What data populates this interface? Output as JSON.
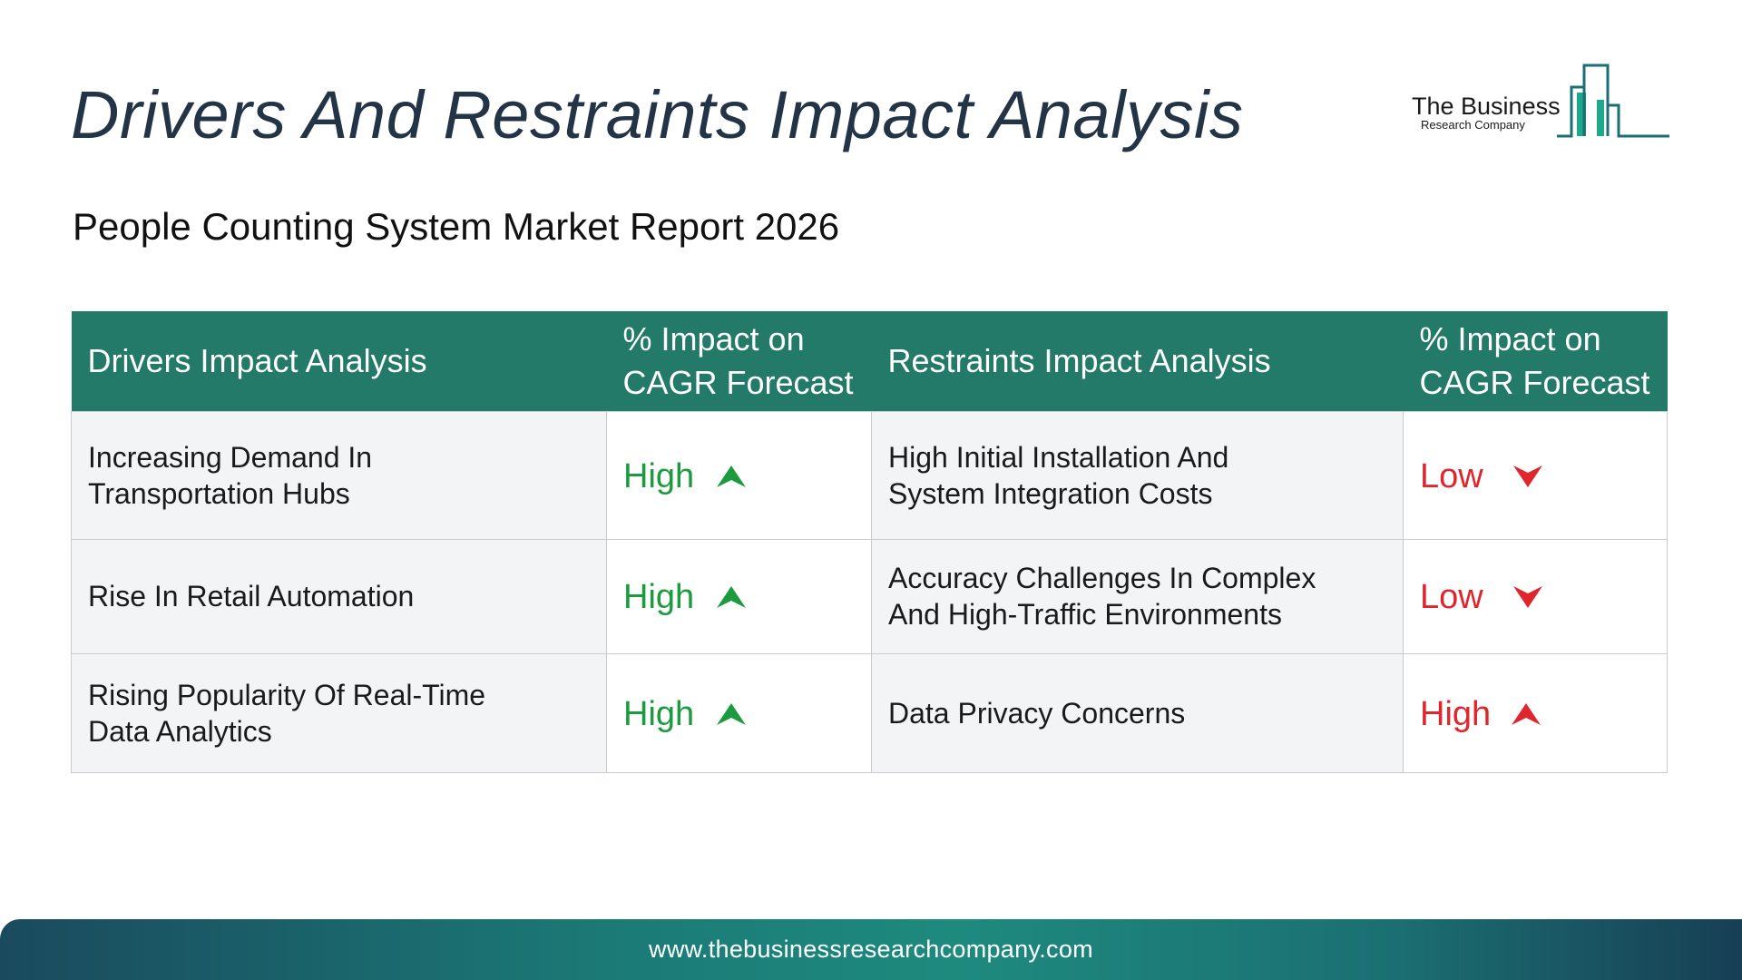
{
  "header": {
    "title": "Drivers And Restraints Impact Analysis",
    "subtitle": "People Counting System Market Report 2026"
  },
  "logo": {
    "line1": "The Business",
    "line2": "Research Company",
    "icon": "building-bars-icon",
    "color": "#1b8a78"
  },
  "table": {
    "headers": {
      "drivers": "Drivers Impact Analysis",
      "drivers_impact_line1": "% Impact on",
      "drivers_impact_line2": "CAGR Forecast",
      "restraints": "Restraints Impact Analysis",
      "restraints_impact_line1": "% Impact on",
      "restraints_impact_line2": "CAGR Forecast"
    },
    "rows": [
      {
        "driver_line1": "Increasing Demand In",
        "driver_line2": "Transportation Hubs",
        "driver_impact": "High",
        "driver_icon": "arrow-up-icon",
        "restraint_line1": "High Initial Installation And",
        "restraint_line2": "System Integration Costs",
        "restraint_impact": "Low",
        "restraint_icon": "arrow-down-icon"
      },
      {
        "driver_line1": "Rise In Retail Automation",
        "driver_line2": "",
        "driver_impact": "High",
        "driver_icon": "arrow-up-icon",
        "restraint_line1": "Accuracy Challenges In Complex",
        "restraint_line2": "And High-Traffic Environments",
        "restraint_impact": "Low",
        "restraint_icon": "arrow-down-icon"
      },
      {
        "driver_line1": "Rising Popularity Of Real-Time",
        "driver_line2": "Data Analytics",
        "driver_impact": "High",
        "driver_icon": "arrow-up-icon",
        "restraint_line1": "Data Privacy Concerns",
        "restraint_line2": "",
        "restraint_impact": "High",
        "restraint_icon": "arrow-up-icon"
      }
    ]
  },
  "footer": {
    "url": "www.thebusinessresearchcompany.com"
  },
  "colors": {
    "header_bg": "#237a68",
    "driver_green": "#1c9a3e",
    "restraint_red": "#e0262d",
    "title": "#243447"
  }
}
